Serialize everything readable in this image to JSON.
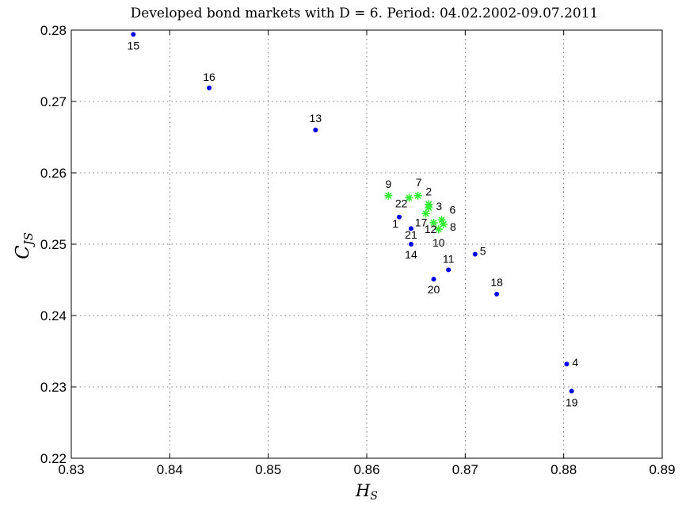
{
  "chart_data": {
    "type": "scatter",
    "title": "Developed bond markets with D = 6. Period: 04.02.2002-09.07.2011",
    "xlabel": "H",
    "xlabel_sub": "S",
    "ylabel": "C",
    "ylabel_sub": "JS",
    "xlim": [
      0.83,
      0.89
    ],
    "ylim": [
      0.22,
      0.28
    ],
    "x_ticks": [
      "0.83",
      "0.84",
      "0.85",
      "0.86",
      "0.87",
      "0.88",
      "0.89"
    ],
    "y_ticks": [
      "0.22",
      "0.23",
      "0.24",
      "0.25",
      "0.26",
      "0.27",
      "0.28"
    ],
    "grid": true,
    "marker_colors": {
      "dot": "#0000ee",
      "star": "#33ee33"
    },
    "series": [
      {
        "marker": "dot",
        "points": [
          {
            "label": "15",
            "x": 0.8363,
            "y": 0.2794
          },
          {
            "label": "16",
            "x": 0.844,
            "y": 0.2719
          },
          {
            "label": "13",
            "x": 0.8548,
            "y": 0.266
          },
          {
            "label": "1",
            "x": 0.8633,
            "y": 0.2538
          },
          {
            "label": "21",
            "x": 0.8645,
            "y": 0.2522
          },
          {
            "label": "14",
            "x": 0.8645,
            "y": 0.25
          },
          {
            "label": "5",
            "x": 0.871,
            "y": 0.2486
          },
          {
            "label": "11",
            "x": 0.8683,
            "y": 0.2464
          },
          {
            "label": "20",
            "x": 0.8668,
            "y": 0.2451
          },
          {
            "label": "18",
            "x": 0.8732,
            "y": 0.243
          },
          {
            "label": "4",
            "x": 0.8803,
            "y": 0.2332
          },
          {
            "label": "19",
            "x": 0.8808,
            "y": 0.2294
          }
        ]
      },
      {
        "marker": "star",
        "points": [
          {
            "label": "9",
            "x": 0.8622,
            "y": 0.2568
          },
          {
            "label": "7",
            "x": 0.8652,
            "y": 0.2568
          },
          {
            "label": "22",
            "x": 0.8643,
            "y": 0.2565
          },
          {
            "label": "2",
            "x": 0.8663,
            "y": 0.2556
          },
          {
            "label": "3",
            "x": 0.8663,
            "y": 0.2551
          },
          {
            "label": "17",
            "x": 0.866,
            "y": 0.2543
          },
          {
            "label": "6",
            "x": 0.8676,
            "y": 0.2534
          },
          {
            "label": "12",
            "x": 0.8668,
            "y": 0.253
          },
          {
            "label": "8",
            "x": 0.8678,
            "y": 0.2528
          },
          {
            "label": "10",
            "x": 0.8673,
            "y": 0.2521
          }
        ]
      }
    ]
  }
}
